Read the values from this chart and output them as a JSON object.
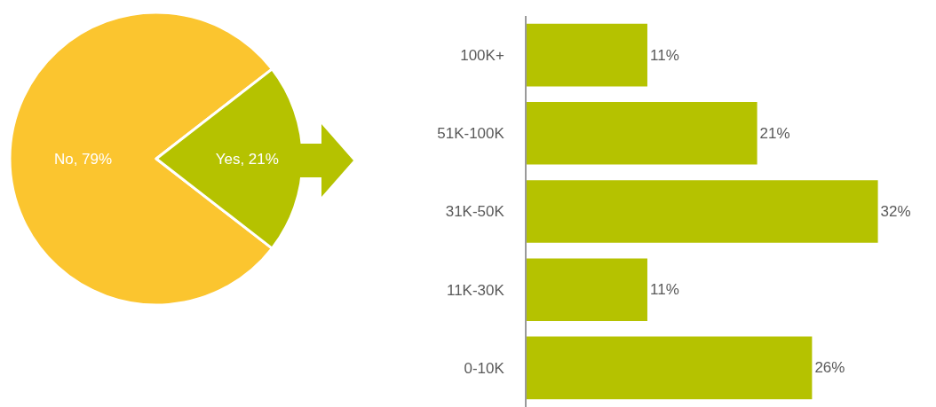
{
  "chart_data": [
    {
      "type": "pie",
      "categories": [
        "No",
        "Yes"
      ],
      "values": [
        79,
        21
      ],
      "colors": [
        "#fbc52f",
        "#b5c200"
      ],
      "value_labels": [
        "79%",
        "21%"
      ],
      "legend": false
    },
    {
      "type": "bar",
      "orientation": "horizontal",
      "categories": [
        "100K+",
        "51K-100K",
        "31K-50K",
        "11K-30K",
        "0-10K"
      ],
      "values": [
        11,
        21,
        32,
        11,
        26
      ],
      "color": "#b5c200",
      "value_labels": [
        "11%",
        "21%",
        "32%",
        "11%",
        "26%"
      ],
      "grid": false,
      "legend": false
    }
  ]
}
